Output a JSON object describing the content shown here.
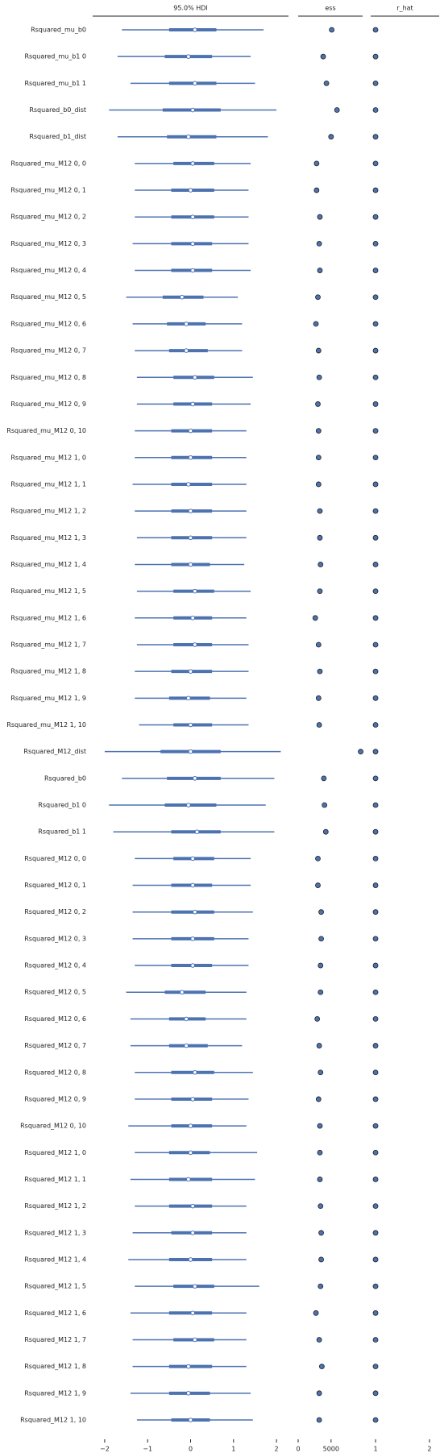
{
  "chart_data": {
    "type": "forest",
    "title": "95.0% HDI",
    "color": "#4c72b0",
    "categories": [
      "Rsquared_mu_b0",
      "Rsquared_mu_b1 0",
      "Rsquared_mu_b1 1",
      "Rsquared_b0_dist",
      "Rsquared_b1_dist",
      "Rsquared_mu_M12 0, 0",
      "Rsquared_mu_M12 0, 1",
      "Rsquared_mu_M12 0, 2",
      "Rsquared_mu_M12 0, 3",
      "Rsquared_mu_M12 0, 4",
      "Rsquared_mu_M12 0, 5",
      "Rsquared_mu_M12 0, 6",
      "Rsquared_mu_M12 0, 7",
      "Rsquared_mu_M12 0, 8",
      "Rsquared_mu_M12 0, 9",
      "Rsquared_mu_M12 0, 10",
      "Rsquared_mu_M12 1, 0",
      "Rsquared_mu_M12 1, 1",
      "Rsquared_mu_M12 1, 2",
      "Rsquared_mu_M12 1, 3",
      "Rsquared_mu_M12 1, 4",
      "Rsquared_mu_M12 1, 5",
      "Rsquared_mu_M12 1, 6",
      "Rsquared_mu_M12 1, 7",
      "Rsquared_mu_M12 1, 8",
      "Rsquared_mu_M12 1, 9",
      "Rsquared_mu_M12 1, 10",
      "Rsquared_M12_dist",
      "Rsquared_b0",
      "Rsquared_b1 0",
      "Rsquared_b1 1",
      "Rsquared_M12 0, 0",
      "Rsquared_M12 0, 1",
      "Rsquared_M12 0, 2",
      "Rsquared_M12 0, 3",
      "Rsquared_M12 0, 4",
      "Rsquared_M12 0, 5",
      "Rsquared_M12 0, 6",
      "Rsquared_M12 0, 7",
      "Rsquared_M12 0, 8",
      "Rsquared_M12 0, 9",
      "Rsquared_M12 0, 10",
      "Rsquared_M12 1, 0",
      "Rsquared_M12 1, 1",
      "Rsquared_M12 1, 2",
      "Rsquared_M12 1, 3",
      "Rsquared_M12 1, 4",
      "Rsquared_M12 1, 5",
      "Rsquared_M12 1, 6",
      "Rsquared_M12 1, 7",
      "Rsquared_M12 1, 8",
      "Rsquared_M12 1, 9",
      "Rsquared_M12 1, 10"
    ],
    "hdi_low": [
      -1.6,
      -1.7,
      -1.4,
      -1.9,
      -1.7,
      -1.3,
      -1.3,
      -1.3,
      -1.35,
      -1.3,
      -1.5,
      -1.35,
      -1.3,
      -1.25,
      -1.25,
      -1.3,
      -1.3,
      -1.35,
      -1.3,
      -1.25,
      -1.3,
      -1.25,
      -1.3,
      -1.25,
      -1.3,
      -1.3,
      -1.2,
      -2.0,
      -1.6,
      -1.9,
      -1.8,
      -1.3,
      -1.35,
      -1.35,
      -1.35,
      -1.3,
      -1.5,
      -1.4,
      -1.4,
      -1.3,
      -1.3,
      -1.45,
      -1.3,
      -1.4,
      -1.3,
      -1.35,
      -1.45,
      -1.3,
      -1.4,
      -1.35,
      -1.35,
      -1.4,
      -1.25
    ],
    "q25": [
      -0.5,
      -0.6,
      -0.5,
      -0.65,
      -0.55,
      -0.4,
      -0.45,
      -0.45,
      -0.45,
      -0.45,
      -0.65,
      -0.55,
      -0.5,
      -0.4,
      -0.4,
      -0.45,
      -0.45,
      -0.45,
      -0.45,
      -0.45,
      -0.45,
      -0.4,
      -0.4,
      -0.4,
      -0.45,
      -0.5,
      -0.4,
      -0.7,
      -0.55,
      -0.6,
      -0.45,
      -0.4,
      -0.45,
      -0.45,
      -0.45,
      -0.45,
      -0.6,
      -0.5,
      -0.5,
      -0.45,
      -0.45,
      -0.45,
      -0.5,
      -0.5,
      -0.5,
      -0.45,
      -0.5,
      -0.4,
      -0.5,
      -0.4,
      -0.5,
      -0.5,
      -0.45
    ],
    "median": [
      0.1,
      -0.05,
      0.1,
      0.05,
      -0.05,
      0.05,
      0,
      0.05,
      0.05,
      0.05,
      -0.2,
      -0.1,
      -0.1,
      0.1,
      0.05,
      0,
      0,
      -0.05,
      0,
      0,
      0,
      0.1,
      0.05,
      0.1,
      0,
      -0.05,
      0,
      0,
      0.1,
      -0.05,
      0.15,
      0.05,
      0.05,
      0.1,
      0.05,
      0.05,
      -0.2,
      -0.1,
      -0.1,
      0.1,
      0.05,
      0,
      0,
      -0.05,
      0.05,
      0.05,
      0,
      0.1,
      0.05,
      0.1,
      -0.05,
      -0.05,
      0
    ],
    "q75": [
      0.6,
      0.5,
      0.6,
      0.7,
      0.6,
      0.55,
      0.55,
      0.55,
      0.5,
      0.5,
      0.3,
      0.35,
      0.4,
      0.55,
      0.5,
      0.5,
      0.5,
      0.5,
      0.5,
      0.5,
      0.45,
      0.55,
      0.5,
      0.5,
      0.5,
      0.45,
      0.5,
      0.7,
      0.7,
      0.6,
      0.7,
      0.55,
      0.5,
      0.55,
      0.55,
      0.5,
      0.35,
      0.35,
      0.4,
      0.55,
      0.5,
      0.5,
      0.45,
      0.5,
      0.5,
      0.5,
      0.5,
      0.55,
      0.5,
      0.55,
      0.5,
      0.45,
      0.45
    ],
    "hdi_high": [
      1.7,
      1.4,
      1.5,
      2.0,
      1.8,
      1.4,
      1.35,
      1.35,
      1.35,
      1.4,
      1.1,
      1.2,
      1.2,
      1.45,
      1.4,
      1.3,
      1.3,
      1.3,
      1.3,
      1.3,
      1.25,
      1.4,
      1.3,
      1.35,
      1.35,
      1.3,
      1.35,
      2.1,
      1.95,
      1.75,
      1.95,
      1.4,
      1.4,
      1.45,
      1.35,
      1.35,
      1.3,
      1.3,
      1.2,
      1.45,
      1.35,
      1.3,
      1.55,
      1.5,
      1.3,
      1.3,
      1.3,
      1.6,
      1.3,
      1.3,
      1.3,
      1.4,
      1.45
    ],
    "xlim": [
      -2.28,
      2.28
    ],
    "xticks": [
      {
        "value": -2,
        "label": "−2"
      },
      {
        "value": -1,
        "label": "−1"
      },
      0,
      1,
      2
    ],
    "ess": {
      "title": "ess",
      "values": [
        5100,
        3800,
        4300,
        5900,
        5000,
        2800,
        2800,
        3300,
        3200,
        3300,
        3000,
        2700,
        3100,
        3200,
        3000,
        3100,
        3100,
        3100,
        3300,
        3300,
        3400,
        3300,
        2600,
        3100,
        3300,
        3100,
        3200,
        9500,
        3900,
        4000,
        4200,
        3000,
        3000,
        3500,
        3500,
        3400,
        3400,
        2900,
        3200,
        3400,
        3100,
        3300,
        3300,
        3300,
        3400,
        3500,
        3500,
        3400,
        2700,
        3200,
        3600,
        3200,
        3200
      ],
      "xlim": [
        0,
        9800
      ],
      "xticks": [
        0,
        5000
      ]
    },
    "r_hat": {
      "title": "r_hat",
      "values": [
        1,
        1,
        1,
        1,
        1,
        1,
        1,
        1,
        1,
        1,
        1,
        1,
        1,
        1,
        1,
        1,
        1,
        1,
        1,
        1,
        1,
        1,
        1,
        1,
        1,
        1,
        1,
        1,
        1,
        1,
        1,
        1,
        1,
        1,
        1,
        1,
        1,
        1,
        1,
        1,
        1,
        1,
        1,
        1,
        1,
        1,
        1,
        1,
        1,
        1,
        1,
        1,
        1
      ],
      "xlim": [
        0.91,
        2.18
      ],
      "xticks": [
        1,
        2
      ]
    }
  }
}
